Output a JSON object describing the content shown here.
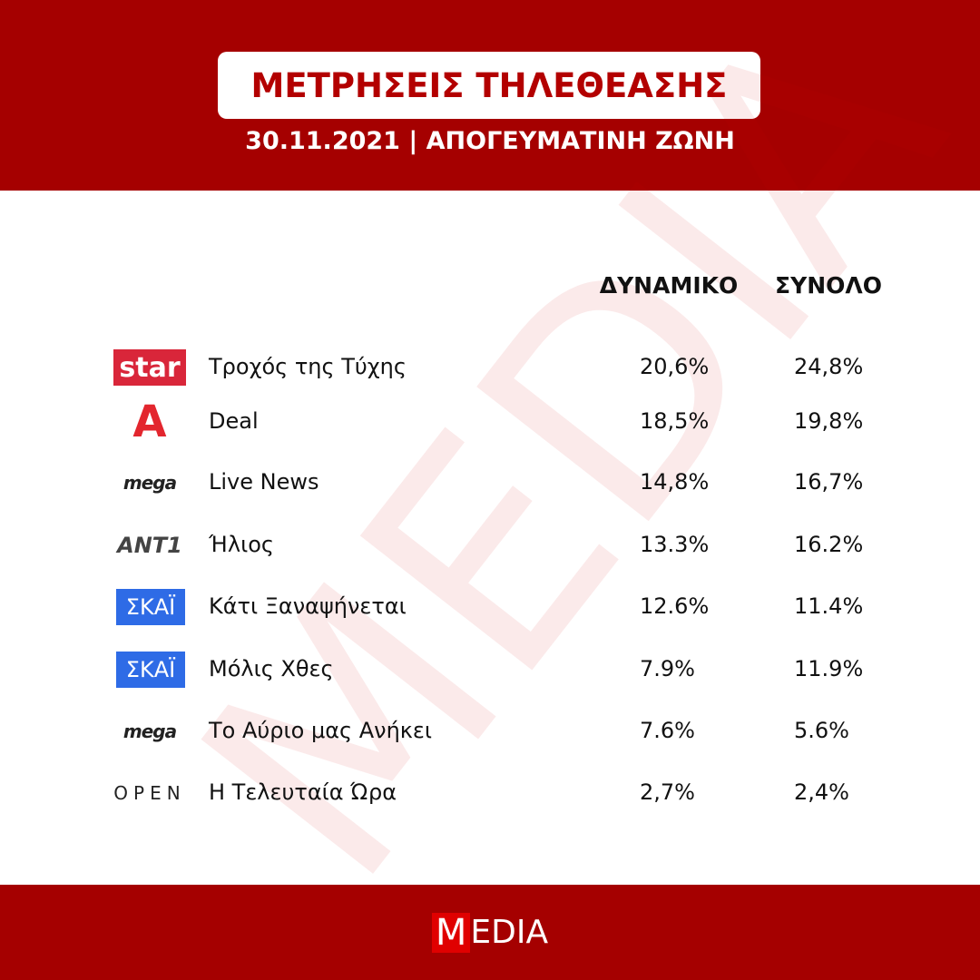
{
  "header": {
    "title": "ΜΕΤΡΗΣΕΙΣ ΤΗΛΕΘΕΑΣΗΣ",
    "subtitle": "30.11.2021 | ΑΠΟΓΕΥΜΑΤΙΝΗ ΖΩΝΗ"
  },
  "table": {
    "columns": [
      "ΔΥΝΑΜΙΚΟ",
      "ΣΥΝΟΛΟ"
    ],
    "rows": [
      {
        "channel": "star",
        "show": "Τροχός της Τύχης",
        "values": [
          "20,6%",
          "24,8%"
        ]
      },
      {
        "channel": "Α",
        "show": "Deal",
        "values": [
          "18,5%",
          "19,8%"
        ]
      },
      {
        "channel": "mega",
        "show": "Live News",
        "values": [
          "14,8%",
          "16,7%"
        ]
      },
      {
        "channel": "ANT1",
        "show": "Ήλιος",
        "values": [
          "13.3%",
          "16.2%"
        ]
      },
      {
        "channel": "ΣΚΑΪ",
        "show": "Κάτι Ξαναψήνεται",
        "values": [
          "12.6%",
          "11.4%"
        ]
      },
      {
        "channel": "ΣΚΑΪ",
        "show": "Μόλις Χθες",
        "values": [
          "7.9%",
          "11.9%"
        ]
      },
      {
        "channel": "mega",
        "show": "Το Αύριο μας Ανήκει",
        "values": [
          "7.6%",
          "5.6%"
        ]
      },
      {
        "channel": "OPEN",
        "show": "Η Τελευταία Ώρα",
        "values": [
          "2,7%",
          "2,4%"
        ]
      }
    ]
  },
  "watermark": "MEDIA",
  "footer": {
    "logo_initial": "M",
    "logo_rest": "EDIA"
  }
}
